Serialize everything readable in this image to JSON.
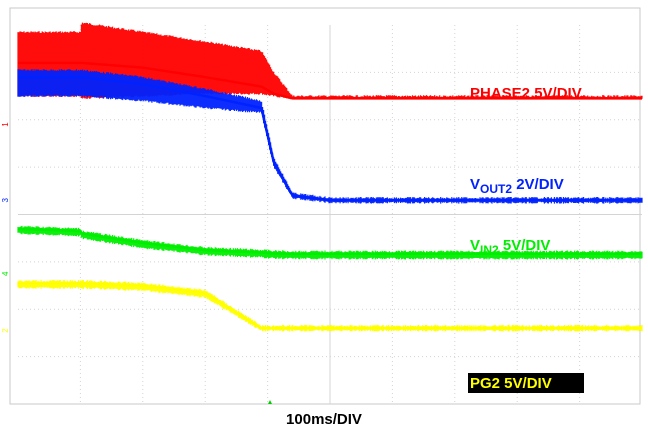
{
  "chart_data": {
    "type": "line",
    "xlabel": "100ms/DIV",
    "grid": true,
    "x_divisions": 10,
    "y_divisions": 8,
    "x": [
      0,
      1,
      1.02,
      2,
      3,
      3.9,
      4.1,
      4.4,
      5,
      10
    ],
    "series": [
      {
        "id": "phase2",
        "label_main": "PHASE2",
        "label_sub": "",
        "label_scale": " 5V/DIV",
        "color": "#ff0000",
        "marker": "1",
        "marker_div": 2.1,
        "values": [
          0.8,
          0.8,
          0.8,
          0.9,
          1.1,
          1.3,
          1.45,
          1.55,
          1.55,
          1.55
        ],
        "noise_band_top": [
          0.15,
          0.15,
          -0.05,
          0.15,
          0.35,
          0.55,
          1.0,
          1.5,
          1.5,
          1.5
        ],
        "noise_band_bottom": [
          1.5,
          1.5,
          1.55,
          1.5,
          1.45,
          1.45,
          1.5,
          1.55,
          1.55,
          1.55
        ]
      },
      {
        "id": "vout2",
        "label_main": "V",
        "label_sub": "OUT2",
        "label_scale": " 2V/DIV",
        "color": "#0022ff",
        "marker": "3",
        "marker_div": 3.7,
        "values": [
          1.1,
          1.1,
          1.1,
          1.25,
          1.5,
          1.75,
          2.9,
          3.6,
          3.7,
          3.7
        ],
        "noise_band_top": [
          0.95,
          0.95,
          0.95,
          1.1,
          1.35,
          1.6,
          2.8,
          3.55,
          3.65,
          3.65
        ],
        "noise_band_bottom": [
          1.5,
          1.5,
          1.5,
          1.6,
          1.75,
          1.85,
          3.0,
          3.65,
          3.75,
          3.75
        ]
      },
      {
        "id": "vin2",
        "label_main": "V",
        "label_sub": "IN2",
        "label_scale": " 5V/DIV",
        "color": "#00ee00",
        "marker": "4",
        "marker_div": 5.25,
        "values": [
          4.3,
          4.35,
          4.4,
          4.6,
          4.75,
          4.8,
          4.82,
          4.83,
          4.83,
          4.83
        ],
        "noise_band_top": [
          4.25,
          4.3,
          4.35,
          4.55,
          4.7,
          4.75,
          4.77,
          4.78,
          4.78,
          4.78
        ],
        "noise_band_bottom": [
          4.4,
          4.45,
          4.5,
          4.7,
          4.85,
          4.9,
          4.92,
          4.93,
          4.93,
          4.93
        ]
      },
      {
        "id": "pg2",
        "label_main": "PG2",
        "label_sub": "",
        "label_scale": " 5V/DIV",
        "color": "#ffff00",
        "marker": "2",
        "marker_div": 6.45,
        "values": [
          5.45,
          5.45,
          5.45,
          5.5,
          5.65,
          6.4,
          6.4,
          6.4,
          6.4,
          6.4
        ],
        "noise_band_top": [
          5.4,
          5.4,
          5.4,
          5.45,
          5.6,
          6.35,
          6.35,
          6.35,
          6.35,
          6.35
        ],
        "noise_band_bottom": [
          5.55,
          5.55,
          5.55,
          5.6,
          5.75,
          6.45,
          6.45,
          6.45,
          6.45,
          6.45
        ]
      }
    ]
  }
}
